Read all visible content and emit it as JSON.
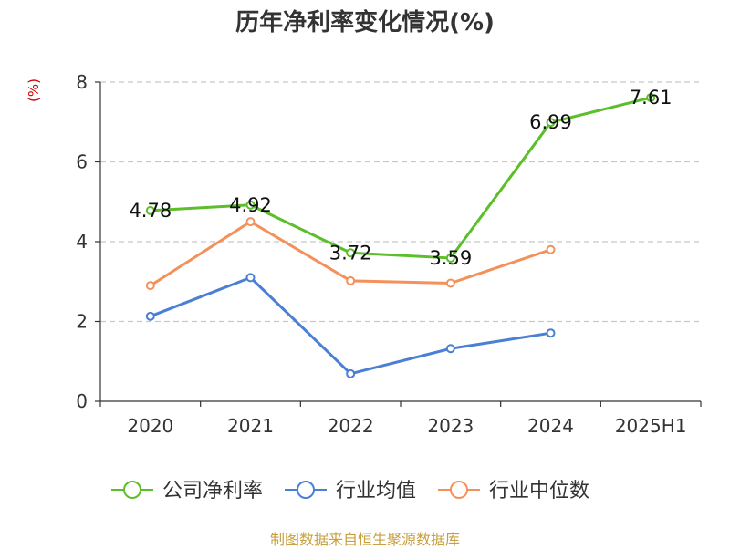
{
  "title": "历年净利率变化情况(%)",
  "unit_label": "(%)",
  "source": "制图数据来自恒生聚源数据库",
  "chart_data": {
    "type": "line",
    "categories": [
      "2020",
      "2021",
      "2022",
      "2023",
      "2024",
      "2025H1"
    ],
    "ylim": [
      0,
      8
    ],
    "yticks": [
      0,
      2,
      4,
      6,
      8
    ],
    "grid": true,
    "legend_position": "bottom",
    "series": [
      {
        "name": "公司净利率",
        "color": "#5cbf2a",
        "values": [
          4.78,
          4.92,
          3.72,
          3.59,
          6.99,
          7.61
        ],
        "labels": [
          "4.78",
          "4.92",
          "3.72",
          "3.59",
          "6.99",
          "7.61"
        ]
      },
      {
        "name": "行业均值",
        "color": "#4a7fd6",
        "values": [
          2.13,
          3.1,
          0.69,
          1.32,
          1.71,
          null
        ]
      },
      {
        "name": "行业中位数",
        "color": "#f4905a",
        "values": [
          2.9,
          4.5,
          3.02,
          2.96,
          3.8,
          null
        ]
      }
    ]
  }
}
